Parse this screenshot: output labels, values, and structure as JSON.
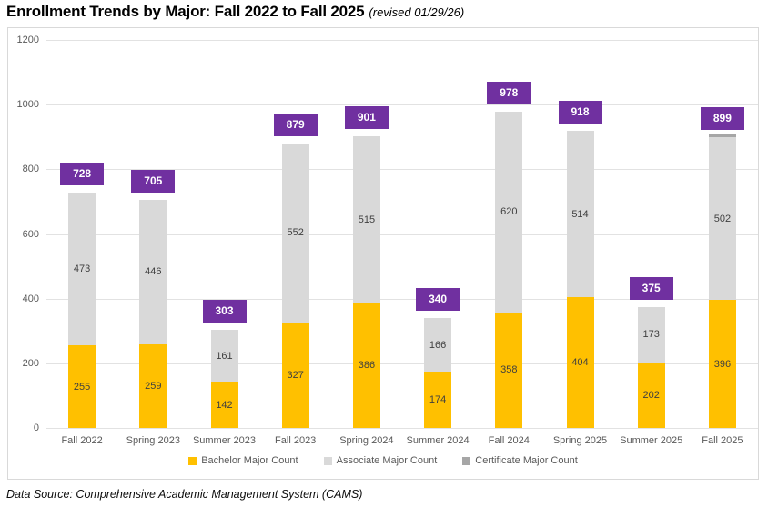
{
  "header": {
    "title": "Enrollment Trends by Major:  Fall 2022 to Fall 2025",
    "revision_note": "(revised 01/29/26)"
  },
  "footer": {
    "data_source": "Data Source:  Comprehensive Academic Management System (CAMS)"
  },
  "colors": {
    "bachelor": "#FFC000",
    "associate": "#D9D9D9",
    "certificate": "#A6A6A6",
    "total_label_bg": "#7030A0",
    "total_label_text": "#FFFFFF",
    "gridline": "#E2E2E2",
    "axis_text": "#595959",
    "segment_label_text": "#3F3F3F",
    "legend_text": "#595959"
  },
  "chart_data": {
    "type": "bar",
    "stacked": true,
    "title": "Enrollment Trends by Major:  Fall 2022 to Fall 2025",
    "categories": [
      "Fall 2022",
      "Spring 2023",
      "Summer 2023",
      "Fall 2023",
      "Spring 2024",
      "Summer 2024",
      "Fall 2024",
      "Spring 2025",
      "Summer 2025",
      "Fall 2025"
    ],
    "series": [
      {
        "name": "Bachelor Major Count",
        "color_key": "bachelor",
        "values": [
          255,
          259,
          142,
          327,
          386,
          174,
          358,
          404,
          202,
          396
        ]
      },
      {
        "name": "Associate Major Count",
        "color_key": "associate",
        "values": [
          473,
          446,
          161,
          552,
          515,
          166,
          620,
          514,
          173,
          502
        ]
      },
      {
        "name": "Certificate Major Count",
        "color_key": "certificate",
        "values": [
          0,
          0,
          0,
          0,
          0,
          0,
          0,
          0,
          0,
          1
        ]
      }
    ],
    "totals": [
      728,
      705,
      303,
      879,
      901,
      340,
      978,
      918,
      375,
      899
    ],
    "xlabel": "",
    "ylabel": "",
    "ylim": [
      0,
      1200
    ],
    "yticks": [
      0,
      200,
      400,
      600,
      800,
      1000,
      1200
    ],
    "grid": true,
    "legend_position": "bottom",
    "segment_label_min_value": 10
  }
}
